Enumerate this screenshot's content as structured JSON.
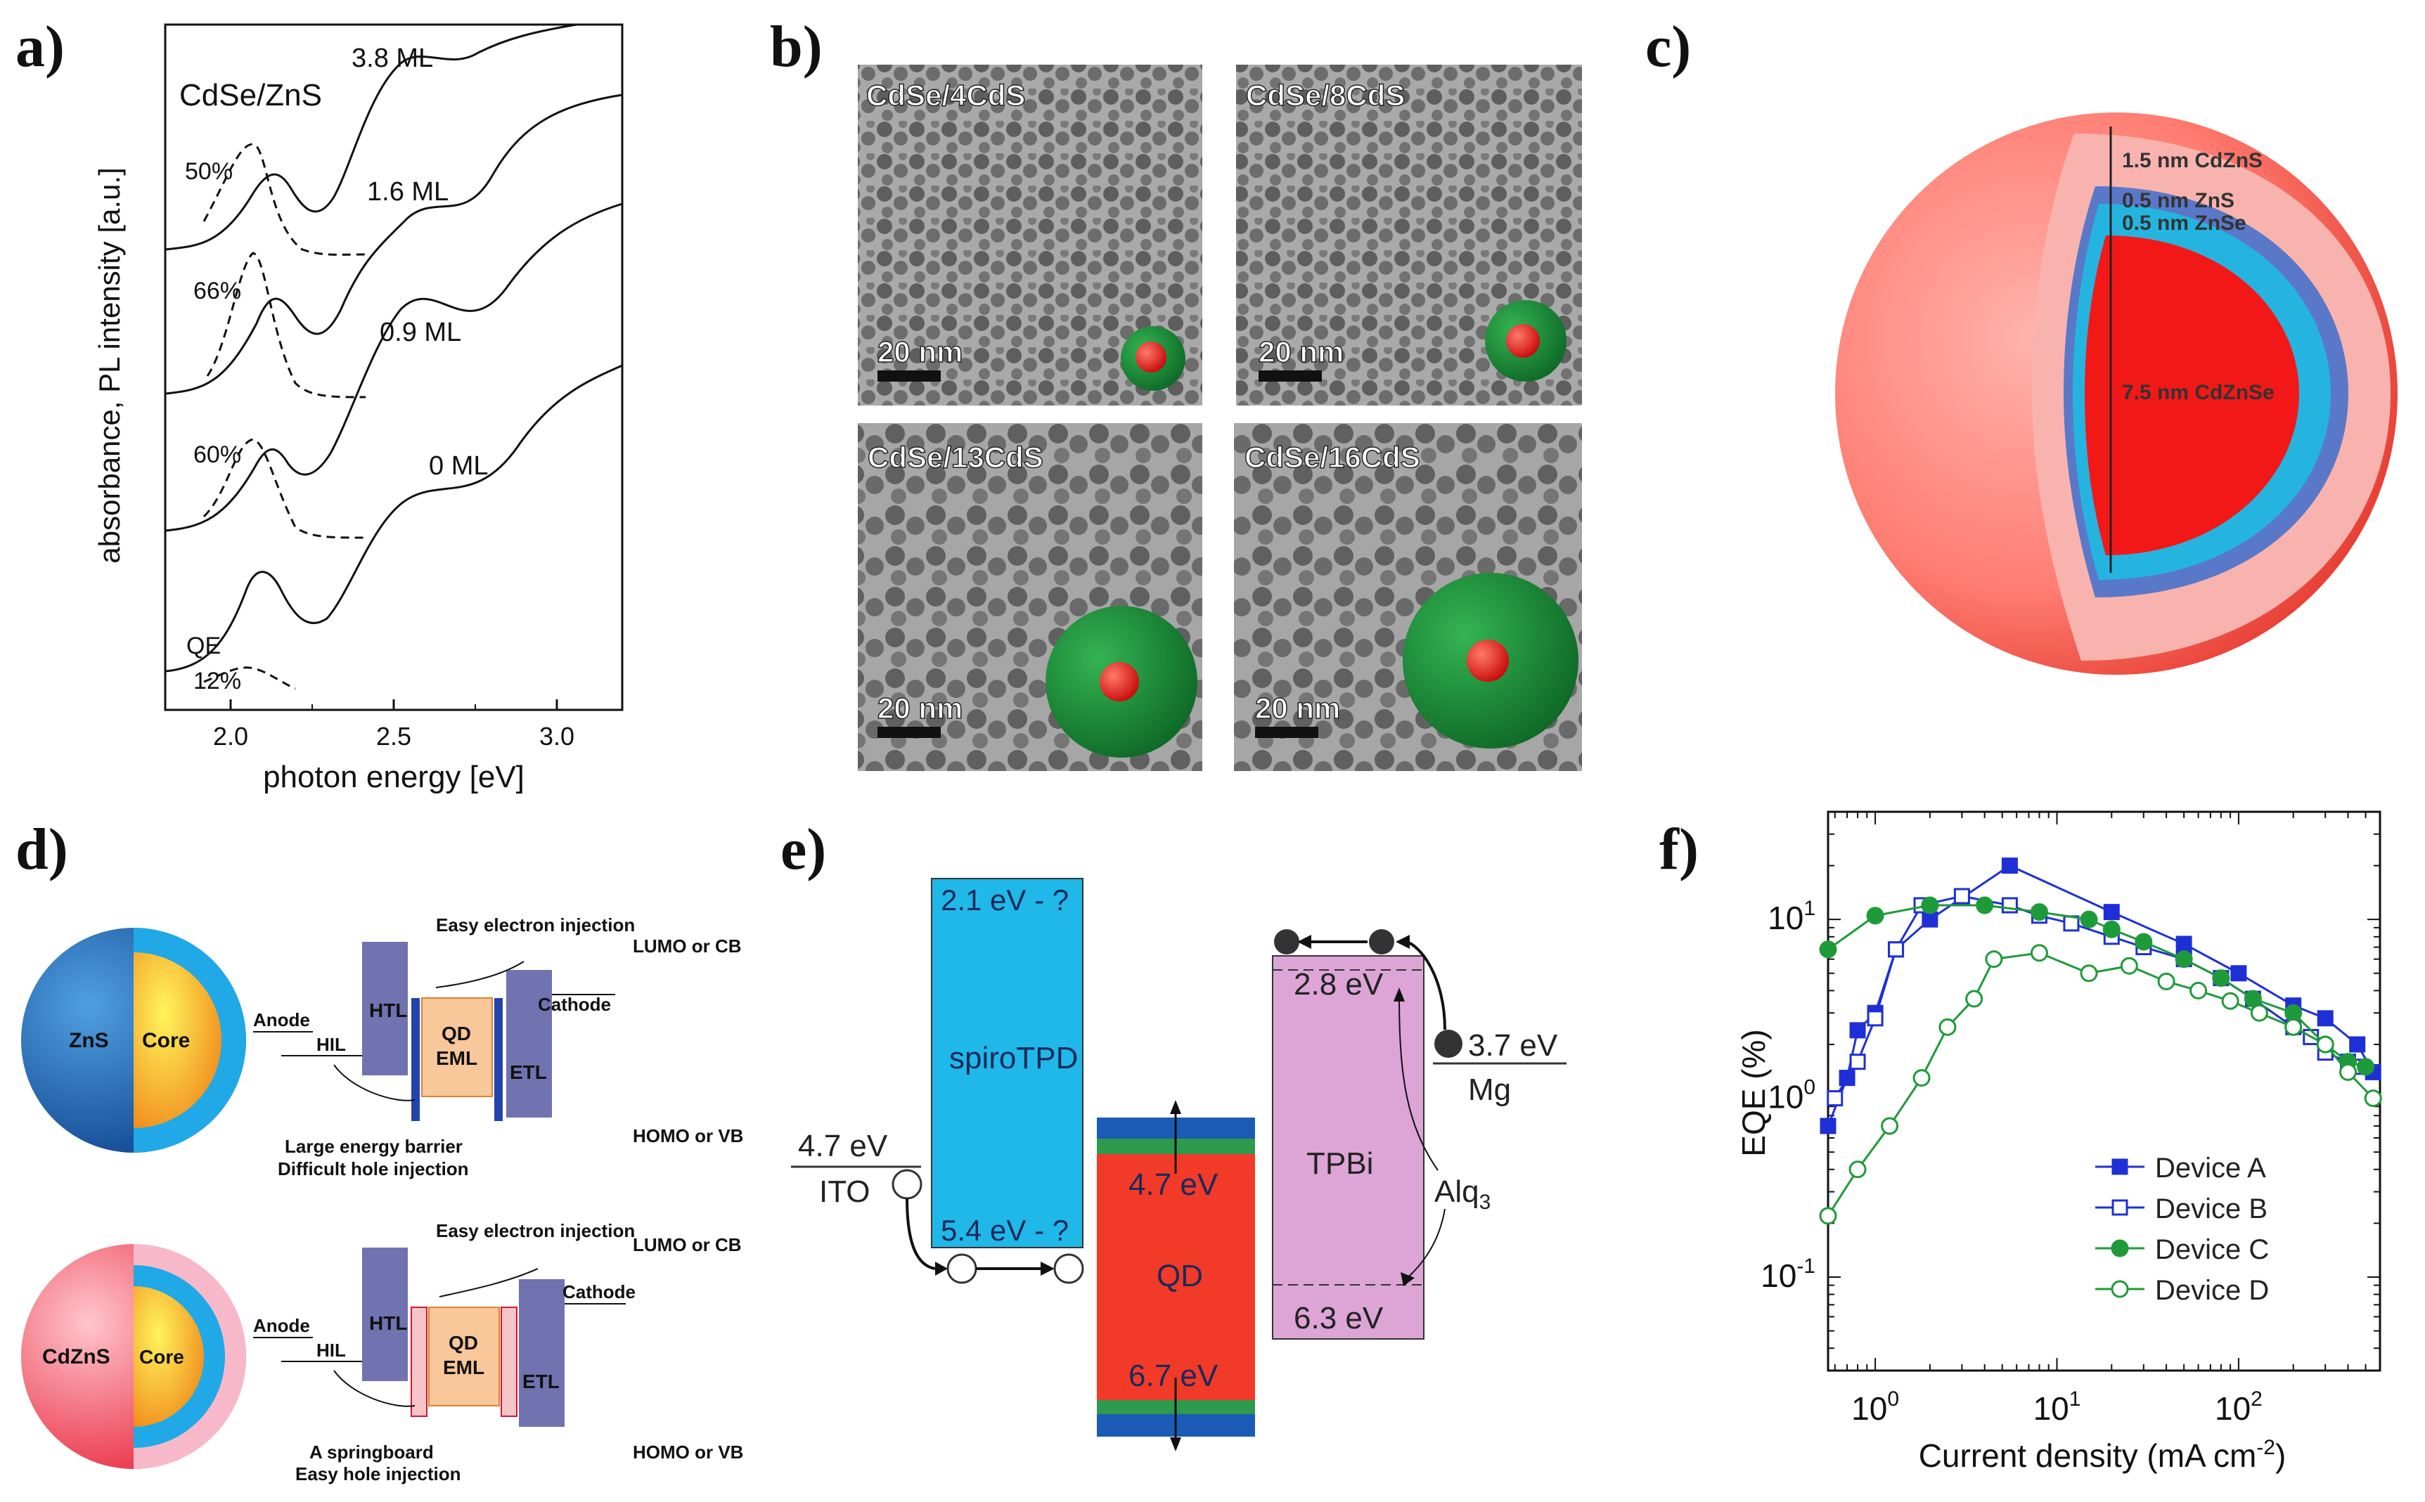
{
  "panel_labels": {
    "a": "a)",
    "b": "b)",
    "c": "c)",
    "d": "d)",
    "e": "e)",
    "f": "f)"
  },
  "panel_a": {
    "title": "CdSe/ZnS",
    "ylabel": "absorbance, PL intensity [a.u.]",
    "xlabel": "photon energy [eV]",
    "x_ticks": [
      "2.0",
      "2.5",
      "3.0"
    ],
    "curves": [
      {
        "shell": "3.8 ML",
        "qe": "50%"
      },
      {
        "shell": "1.6 ML",
        "qe": "66%"
      },
      {
        "shell": "0.9 ML",
        "qe": "60%"
      },
      {
        "shell": "0 ML",
        "qe": "12%"
      }
    ],
    "qe_label": "QE"
  },
  "panel_b": {
    "images": [
      {
        "label": "CdSe/4CdS",
        "scale": "20 nm"
      },
      {
        "label": "CdSe/8CdS",
        "scale": "20 nm"
      },
      {
        "label": "CdSe/13CdS",
        "scale": "20 nm"
      },
      {
        "label": "CdSe/16CdS",
        "scale": "20 nm"
      }
    ]
  },
  "panel_c": {
    "layers": [
      "1.5 nm CdZnS",
      "0.5 nm ZnS",
      "0.5 nm ZnSe",
      "7.5 nm CdZnSe"
    ]
  },
  "panel_d": {
    "top": {
      "shell": "ZnS",
      "core": "Core",
      "injection_e": "Easy electron injection",
      "barrier_1": "Large energy barrier",
      "barrier_2": "Difficult hole injection",
      "lumo": "LUMO or CB",
      "homo": "HOMO or VB",
      "anode": "Anode",
      "cathode": "Cathode",
      "hil": "HIL",
      "htl": "HTL",
      "qd": "QD",
      "eml": "EML",
      "etl": "ETL"
    },
    "bottom": {
      "shell": "CdZnS",
      "core": "Core",
      "injection_e": "Easy electron injection",
      "barrier_1": "A springboard",
      "barrier_2": "Easy hole injection",
      "lumo": "LUMO or CB",
      "homo": "HOMO or VB",
      "anode": "Anode",
      "cathode": "Cathode",
      "hil": "HIL",
      "htl": "HTL",
      "qd": "QD",
      "eml": "EML",
      "etl": "ETL"
    }
  },
  "panel_e": {
    "ito_level": "4.7 eV",
    "ito": "ITO",
    "spiro_top": "2.1 eV - ?",
    "spiro": "spiroTPD",
    "spiro_bottom": "5.4 eV - ?",
    "qd_top": "4.7 eV",
    "qd": "QD",
    "qd_bottom": "6.7 eV",
    "tpbi_top": "2.8 eV",
    "tpbi": "TPBi",
    "tpbi_bottom": "6.3 eV",
    "mg_level": "3.7 eV",
    "mg": "Mg",
    "alq": "Alq",
    "colors": {
      "spiro": "#1fb8e8",
      "qd": "#f23a28",
      "tpbi": "#dca5d6",
      "band_blue": "#1c5bb5",
      "band_green": "#2e9a4e"
    }
  },
  "panel_f": {
    "chart_data": {
      "type": "line",
      "xscale": "log",
      "yscale": "log",
      "xlim": [
        0.55,
        600
      ],
      "ylim": [
        0.03,
        40
      ],
      "xlabel": "Current density (mA cm",
      "xlabel_sup": "-2",
      "xlabel_close": ")",
      "ylabel": "EQE  (%)",
      "x_ticks": [
        {
          "base": "10",
          "exp": "0",
          "value": 1
        },
        {
          "base": "10",
          "exp": "1",
          "value": 10
        },
        {
          "base": "10",
          "exp": "2",
          "value": 100
        }
      ],
      "y_ticks": [
        {
          "base": "10",
          "exp": "1",
          "value": 10
        },
        {
          "base": "10",
          "exp": "0",
          "value": 1
        },
        {
          "base": "10",
          "exp": "-1",
          "value": 0.1
        }
      ],
      "legend_position": "bottom-right",
      "series": [
        {
          "name": "Device A",
          "color": "#1f2fd6",
          "marker": "square",
          "filled": true,
          "x": [
            0.55,
            0.7,
            0.8,
            1.0,
            1.3,
            2.0,
            5.5,
            20,
            50,
            100,
            200,
            300,
            450,
            550
          ],
          "y": [
            0.7,
            1.3,
            2.4,
            3.0,
            6.8,
            10.0,
            20.0,
            11.0,
            7.3,
            5.0,
            3.3,
            2.8,
            2.0,
            1.4
          ]
        },
        {
          "name": "Device B",
          "color": "#1f2fd6",
          "marker": "square",
          "filled": false,
          "x": [
            0.6,
            0.8,
            1.0,
            1.3,
            1.8,
            3.0,
            5.5,
            8,
            12,
            20,
            30,
            50,
            80,
            120,
            200,
            250,
            300,
            400,
            450
          ],
          "y": [
            1.0,
            1.6,
            2.8,
            6.8,
            12.0,
            13.5,
            12.0,
            10.5,
            9.5,
            8.0,
            7.0,
            6.0,
            4.7,
            3.6,
            2.5,
            2.2,
            1.8,
            1.6,
            1.5
          ]
        },
        {
          "name": "Device C",
          "color": "#1f9a3a",
          "marker": "circle",
          "filled": true,
          "x": [
            0.55,
            1.0,
            2.0,
            4.0,
            8,
            15,
            20,
            30,
            50,
            80,
            120,
            200,
            300,
            400,
            500
          ],
          "y": [
            6.8,
            10.5,
            12.0,
            12.0,
            11.0,
            10.0,
            8.8,
            7.5,
            6.0,
            4.7,
            3.6,
            3.0,
            2.0,
            1.6,
            1.5
          ]
        },
        {
          "name": "Device D",
          "color": "#1f9a3a",
          "marker": "circle",
          "filled": false,
          "x": [
            0.55,
            0.8,
            1.2,
            1.8,
            2.5,
            3.5,
            4.5,
            8,
            15,
            25,
            40,
            60,
            90,
            130,
            200,
            300,
            400,
            550
          ],
          "y": [
            0.22,
            0.4,
            0.7,
            1.3,
            2.5,
            3.6,
            6.0,
            6.5,
            5.0,
            5.5,
            4.5,
            4.0,
            3.5,
            3.0,
            2.5,
            2.0,
            1.4,
            1.0
          ]
        }
      ]
    }
  }
}
